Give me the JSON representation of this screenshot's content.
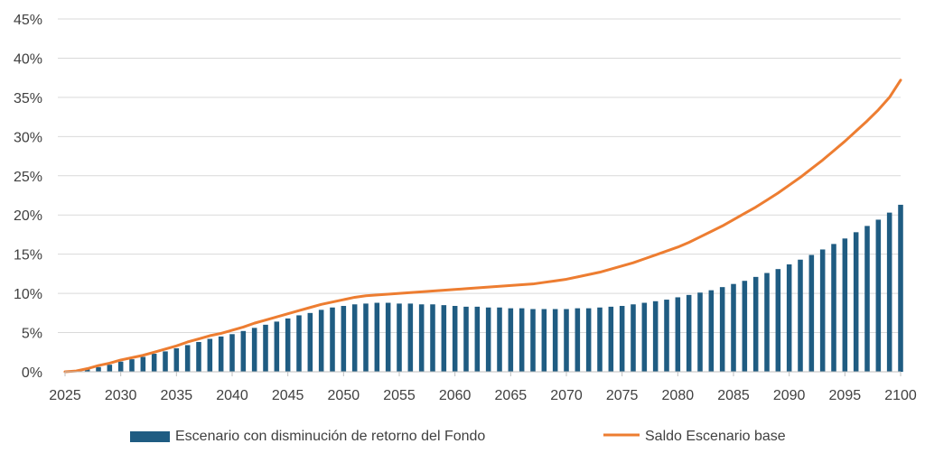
{
  "chart_data": {
    "type": "bar",
    "x": [
      2025,
      2026,
      2027,
      2028,
      2029,
      2030,
      2031,
      2032,
      2033,
      2034,
      2035,
      2036,
      2037,
      2038,
      2039,
      2040,
      2041,
      2042,
      2043,
      2044,
      2045,
      2046,
      2047,
      2048,
      2049,
      2050,
      2051,
      2052,
      2053,
      2054,
      2055,
      2056,
      2057,
      2058,
      2059,
      2060,
      2061,
      2062,
      2063,
      2064,
      2065,
      2066,
      2067,
      2068,
      2069,
      2070,
      2071,
      2072,
      2073,
      2074,
      2075,
      2076,
      2077,
      2078,
      2079,
      2080,
      2081,
      2082,
      2083,
      2084,
      2085,
      2086,
      2087,
      2088,
      2089,
      2090,
      2091,
      2092,
      2093,
      2094,
      2095,
      2096,
      2097,
      2098,
      2099,
      2100
    ],
    "series": [
      {
        "name": "Escenario con disminución de retorno del Fondo",
        "type": "bar",
        "color": "#1F5C82",
        "values": [
          0.0,
          0.1,
          0.3,
          0.6,
          0.9,
          1.3,
          1.6,
          1.9,
          2.3,
          2.6,
          3.0,
          3.4,
          3.8,
          4.2,
          4.5,
          4.8,
          5.2,
          5.6,
          6.0,
          6.4,
          6.8,
          7.2,
          7.5,
          7.9,
          8.2,
          8.4,
          8.6,
          8.7,
          8.8,
          8.8,
          8.7,
          8.7,
          8.6,
          8.6,
          8.5,
          8.4,
          8.3,
          8.3,
          8.2,
          8.2,
          8.1,
          8.1,
          8.0,
          8.0,
          8.0,
          8.0,
          8.1,
          8.1,
          8.2,
          8.3,
          8.4,
          8.6,
          8.8,
          9.0,
          9.2,
          9.5,
          9.8,
          10.1,
          10.4,
          10.8,
          11.2,
          11.6,
          12.1,
          12.6,
          13.1,
          13.7,
          14.3,
          14.9,
          15.6,
          16.3,
          17.0,
          17.8,
          18.6,
          19.4,
          20.3,
          21.3
        ]
      },
      {
        "name": "Saldo Escenario base",
        "type": "line",
        "color": "#ED7D31",
        "values": [
          0.0,
          0.1,
          0.4,
          0.8,
          1.1,
          1.5,
          1.8,
          2.1,
          2.5,
          2.9,
          3.3,
          3.8,
          4.2,
          4.6,
          4.9,
          5.3,
          5.7,
          6.2,
          6.6,
          7.0,
          7.4,
          7.8,
          8.2,
          8.6,
          8.9,
          9.2,
          9.5,
          9.7,
          9.8,
          9.9,
          10.0,
          10.1,
          10.2,
          10.3,
          10.4,
          10.5,
          10.6,
          10.7,
          10.8,
          10.9,
          11.0,
          11.1,
          11.2,
          11.4,
          11.6,
          11.8,
          12.1,
          12.4,
          12.7,
          13.1,
          13.5,
          13.9,
          14.4,
          14.9,
          15.4,
          15.9,
          16.5,
          17.2,
          17.9,
          18.6,
          19.4,
          20.2,
          21.0,
          21.9,
          22.8,
          23.8,
          24.8,
          25.9,
          27.0,
          28.2,
          29.4,
          30.7,
          32.0,
          33.4,
          35.0,
          37.2
        ]
      }
    ],
    "ylim": [
      0,
      45
    ],
    "yticks": [
      "0%",
      "5%",
      "10%",
      "15%",
      "20%",
      "25%",
      "30%",
      "35%",
      "40%",
      "45%"
    ],
    "xticks": [
      "2025",
      "2030",
      "2035",
      "2040",
      "2045",
      "2050",
      "2055",
      "2060",
      "2065",
      "2070",
      "2075",
      "2080",
      "2085",
      "2090",
      "2095",
      "2100"
    ],
    "grid": true,
    "legend": "bottom"
  }
}
